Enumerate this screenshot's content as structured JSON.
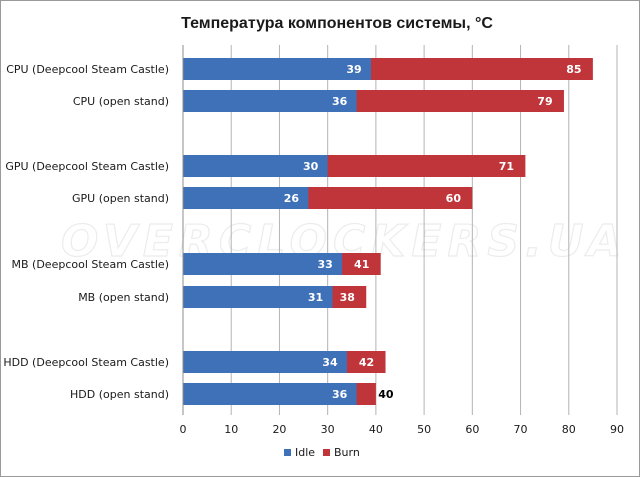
{
  "chart_data": {
    "type": "bar",
    "orientation": "horizontal",
    "stacked": "overlay",
    "title": "Температура компонентов системы, °C",
    "categories": [
      "CPU (Deepcool Steam Castle)",
      "CPU (open stand)",
      "GPU (Deepcool Steam Castle)",
      "GPU (open stand)",
      "MB (Deepcool Steam Castle)",
      "MB (open stand)",
      "HDD (Deepcool Steam Castle)",
      "HDD (open stand)"
    ],
    "series": [
      {
        "name": "Idle",
        "values": [
          39,
          36,
          30,
          26,
          33,
          31,
          34,
          36
        ],
        "color": "#3F71B9"
      },
      {
        "name": "Burn",
        "values": [
          85,
          79,
          71,
          60,
          41,
          38,
          42,
          40
        ],
        "color": "#C0353A"
      }
    ],
    "xlim": [
      0,
      90
    ],
    "xticks": [
      "0",
      "10",
      "20",
      "30",
      "40",
      "50",
      "60",
      "70",
      "80",
      "90"
    ],
    "xlabel": "",
    "ylabel": "",
    "grid": true,
    "legend_position": "bottom",
    "watermark": "OVERCLOCKERS.UA"
  }
}
